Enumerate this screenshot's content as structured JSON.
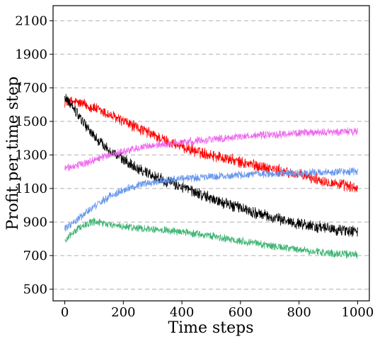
{
  "chart_data": {
    "type": "line",
    "xlabel": "Time steps",
    "ylabel": "Profit per time step",
    "xlim": [
      -40,
      1040
    ],
    "ylim": [
      430,
      2190
    ],
    "xticks": [
      0,
      200,
      400,
      600,
      800,
      1000
    ],
    "yticks": [
      500,
      700,
      900,
      1100,
      1300,
      1500,
      1700,
      1900,
      2100
    ],
    "grid": "horizontal dashed",
    "legend": "none",
    "series": [
      {
        "color": "#ff0000",
        "x": [
          0,
          50,
          100,
          150,
          200,
          250,
          300,
          350,
          400,
          450,
          500,
          550,
          600,
          650,
          700,
          750,
          800,
          850,
          900,
          950,
          1000
        ],
        "y": [
          1620,
          1610,
          1580,
          1540,
          1500,
          1460,
          1420,
          1380,
          1350,
          1320,
          1300,
          1280,
          1255,
          1240,
          1220,
          1200,
          1180,
          1160,
          1140,
          1120,
          1100
        ],
        "noise": 30
      },
      {
        "color": "#000000",
        "x": [
          0,
          20,
          50,
          100,
          150,
          200,
          250,
          300,
          350,
          400,
          450,
          500,
          550,
          600,
          650,
          700,
          750,
          800,
          850,
          900,
          950,
          1000
        ],
        "y": [
          1630,
          1610,
          1530,
          1410,
          1330,
          1270,
          1220,
          1180,
          1140,
          1110,
          1075,
          1040,
          1010,
          985,
          955,
          930,
          910,
          890,
          875,
          860,
          850,
          845
        ],
        "noise": 30
      },
      {
        "color": "#ee66ee",
        "x": [
          0,
          50,
          100,
          150,
          200,
          250,
          300,
          350,
          400,
          450,
          500,
          550,
          600,
          650,
          700,
          750,
          800,
          850,
          900,
          950,
          1000
        ],
        "y": [
          1220,
          1240,
          1270,
          1300,
          1320,
          1340,
          1355,
          1365,
          1375,
          1385,
          1395,
          1400,
          1410,
          1415,
          1420,
          1425,
          1430,
          1432,
          1435,
          1440,
          1440
        ],
        "noise": 20
      },
      {
        "color": "#6495ed",
        "x": [
          0,
          30,
          60,
          100,
          150,
          200,
          250,
          300,
          350,
          400,
          450,
          500,
          550,
          600,
          650,
          700,
          750,
          800,
          850,
          900,
          950,
          1000
        ],
        "y": [
          860,
          900,
          940,
          990,
          1050,
          1090,
          1120,
          1140,
          1150,
          1160,
          1165,
          1170,
          1175,
          1180,
          1185,
          1185,
          1190,
          1190,
          1195,
          1195,
          1200,
          1200
        ],
        "noise": 20
      },
      {
        "color": "#3cb371",
        "x": [
          0,
          30,
          60,
          100,
          150,
          200,
          250,
          300,
          350,
          400,
          450,
          500,
          550,
          600,
          650,
          700,
          750,
          800,
          850,
          900,
          950,
          1000
        ],
        "y": [
          790,
          840,
          880,
          900,
          885,
          870,
          865,
          860,
          850,
          840,
          830,
          815,
          800,
          790,
          775,
          760,
          745,
          735,
          725,
          715,
          710,
          705
        ],
        "noise": 20
      }
    ]
  }
}
